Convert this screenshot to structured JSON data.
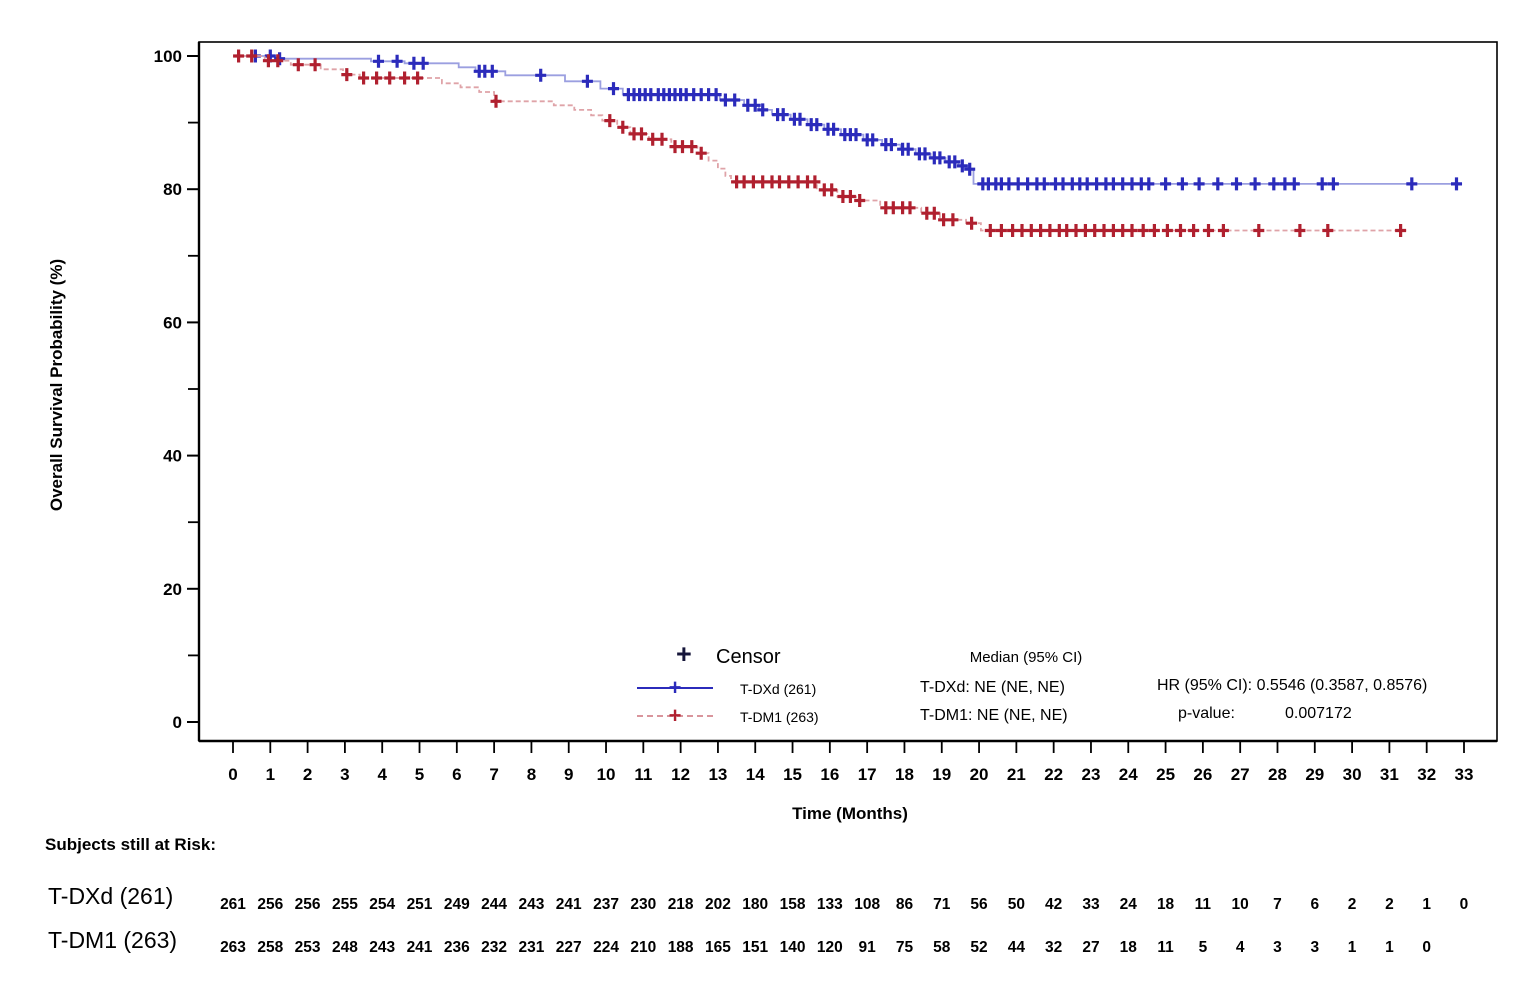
{
  "chart_data": {
    "type": "line",
    "subtype": "kaplan-meier-step",
    "title": "",
    "xlabel": "Time (Months)",
    "ylabel": "Overall Survival Probability (%)",
    "xlim": [
      0,
      33
    ],
    "ylim": [
      0,
      100
    ],
    "grid": false,
    "xticks": [
      0,
      1,
      2,
      3,
      4,
      5,
      6,
      7,
      8,
      9,
      10,
      11,
      12,
      13,
      14,
      15,
      16,
      17,
      18,
      19,
      20,
      21,
      22,
      23,
      24,
      25,
      26,
      27,
      28,
      29,
      30,
      31,
      32,
      33
    ],
    "yticks_major": [
      0,
      20,
      40,
      60,
      80,
      100
    ],
    "yticks_minor": [
      10,
      30,
      50,
      70,
      90
    ],
    "series": [
      {
        "id": "tdxd",
        "name": "T-DXd (261)",
        "color": "#2b2bbb",
        "line_color": "#9b9fe0",
        "style": "solid",
        "steps": [
          [
            0,
            100
          ],
          [
            1.15,
            99.6
          ],
          [
            3.7,
            99.2
          ],
          [
            4.6,
            98.9
          ],
          [
            6.05,
            98.3
          ],
          [
            6.5,
            97.7
          ],
          [
            7.3,
            97.1
          ],
          [
            8.9,
            96.2
          ],
          [
            9.85,
            95.1
          ],
          [
            10.45,
            94.2
          ],
          [
            13.05,
            93.4
          ],
          [
            13.7,
            92.6
          ],
          [
            14.1,
            91.9
          ],
          [
            14.45,
            91.2
          ],
          [
            14.95,
            90.5
          ],
          [
            15.4,
            89.7
          ],
          [
            15.85,
            89.0
          ],
          [
            16.3,
            88.2
          ],
          [
            16.9,
            87.4
          ],
          [
            17.4,
            86.7
          ],
          [
            17.9,
            86.0
          ],
          [
            18.3,
            85.3
          ],
          [
            18.7,
            84.7
          ],
          [
            19.1,
            84.1
          ],
          [
            19.45,
            83.5
          ],
          [
            19.7,
            83.0
          ],
          [
            19.85,
            80.8
          ],
          [
            32.95,
            80.8
          ]
        ],
        "censor_times": [
          0.6,
          1.0,
          1.25,
          3.9,
          4.4,
          4.85,
          5.1,
          6.6,
          6.75,
          6.95,
          8.25,
          9.5,
          10.2,
          10.6,
          10.75,
          10.9,
          11.05,
          11.2,
          11.4,
          11.55,
          11.7,
          11.85,
          12.0,
          12.15,
          12.35,
          12.55,
          12.75,
          12.95,
          13.2,
          13.45,
          13.8,
          14.0,
          14.2,
          14.6,
          14.75,
          15.05,
          15.2,
          15.5,
          15.65,
          15.95,
          16.1,
          16.4,
          16.55,
          16.7,
          17.0,
          17.15,
          17.5,
          17.65,
          17.95,
          18.1,
          18.4,
          18.55,
          18.8,
          18.95,
          19.2,
          19.35,
          19.55,
          19.75,
          20.1,
          20.25,
          20.45,
          20.6,
          20.8,
          21.05,
          21.3,
          21.55,
          21.75,
          22.05,
          22.25,
          22.5,
          22.7,
          22.9,
          23.15,
          23.4,
          23.6,
          23.85,
          24.1,
          24.35,
          24.55,
          25.0,
          25.45,
          25.9,
          26.4,
          26.9,
          27.4,
          27.9,
          28.2,
          28.45,
          29.2,
          29.5,
          31.6,
          32.8
        ]
      },
      {
        "id": "tdm1",
        "name": "T-DM1 (263)",
        "color": "#b0202f",
        "line_color": "#dfa3a8",
        "style": "dashed",
        "steps": [
          [
            0,
            100
          ],
          [
            0.85,
            99.3
          ],
          [
            1.55,
            98.7
          ],
          [
            2.35,
            98.0
          ],
          [
            2.95,
            97.2
          ],
          [
            3.4,
            96.7
          ],
          [
            5.6,
            95.9
          ],
          [
            6.1,
            95.3
          ],
          [
            6.6,
            94.6
          ],
          [
            7.0,
            93.2
          ],
          [
            8.6,
            92.6
          ],
          [
            9.15,
            91.9
          ],
          [
            9.6,
            91.1
          ],
          [
            9.9,
            90.3
          ],
          [
            10.3,
            89.3
          ],
          [
            10.65,
            88.3
          ],
          [
            11.15,
            87.5
          ],
          [
            11.75,
            86.4
          ],
          [
            12.45,
            85.4
          ],
          [
            12.75,
            84.3
          ],
          [
            13.0,
            83.1
          ],
          [
            13.2,
            82.0
          ],
          [
            13.35,
            81.1
          ],
          [
            15.65,
            79.9
          ],
          [
            16.2,
            78.9
          ],
          [
            16.7,
            78.3
          ],
          [
            17.35,
            77.2
          ],
          [
            18.45,
            76.4
          ],
          [
            18.95,
            75.4
          ],
          [
            19.65,
            74.9
          ],
          [
            20.05,
            73.8
          ],
          [
            31.45,
            73.8
          ]
        ],
        "censor_times": [
          0.15,
          0.5,
          0.95,
          1.2,
          1.75,
          2.2,
          3.05,
          3.5,
          3.85,
          4.2,
          4.6,
          4.95,
          7.05,
          10.1,
          10.45,
          10.75,
          10.95,
          11.25,
          11.5,
          11.85,
          12.05,
          12.3,
          12.55,
          13.5,
          13.7,
          13.95,
          14.2,
          14.45,
          14.65,
          14.9,
          15.15,
          15.4,
          15.6,
          15.85,
          16.05,
          16.35,
          16.55,
          16.8,
          17.5,
          17.7,
          17.95,
          18.15,
          18.6,
          18.8,
          19.05,
          19.3,
          19.8,
          20.3,
          20.6,
          20.9,
          21.15,
          21.4,
          21.65,
          21.9,
          22.15,
          22.35,
          22.6,
          22.85,
          23.1,
          23.35,
          23.6,
          23.85,
          24.1,
          24.4,
          24.7,
          25.05,
          25.4,
          25.75,
          26.15,
          26.55,
          27.5,
          28.6,
          29.35,
          31.3
        ]
      }
    ],
    "legend_position": "inside-bottom-center"
  },
  "legend": {
    "censor_symbol": "+",
    "censor_label": "Censor"
  },
  "stats": {
    "median_header": "Median (95% CI)",
    "median_tdxd": "T-DXd: NE (NE, NE)",
    "median_tdm1": "T-DM1: NE (NE, NE)",
    "hr_text": "HR (95% CI): 0.5546 (0.3587, 0.8576)",
    "pvalue_label": "p-value:",
    "pvalue": "0.007172"
  },
  "risk_table": {
    "title": "Subjects still at Risk:",
    "rows": [
      {
        "label": "T-DXd (261)",
        "values": [
          261,
          256,
          256,
          255,
          254,
          251,
          249,
          244,
          243,
          241,
          237,
          230,
          218,
          202,
          180,
          158,
          133,
          108,
          86,
          71,
          56,
          50,
          42,
          33,
          24,
          18,
          11,
          10,
          7,
          6,
          2,
          2,
          1,
          0
        ]
      },
      {
        "label": "T-DM1 (263)",
        "values": [
          263,
          258,
          253,
          248,
          243,
          241,
          236,
          232,
          231,
          227,
          224,
          210,
          188,
          165,
          151,
          140,
          120,
          91,
          75,
          58,
          52,
          44,
          32,
          27,
          18,
          11,
          5,
          4,
          3,
          3,
          1,
          1,
          0
        ]
      }
    ]
  }
}
